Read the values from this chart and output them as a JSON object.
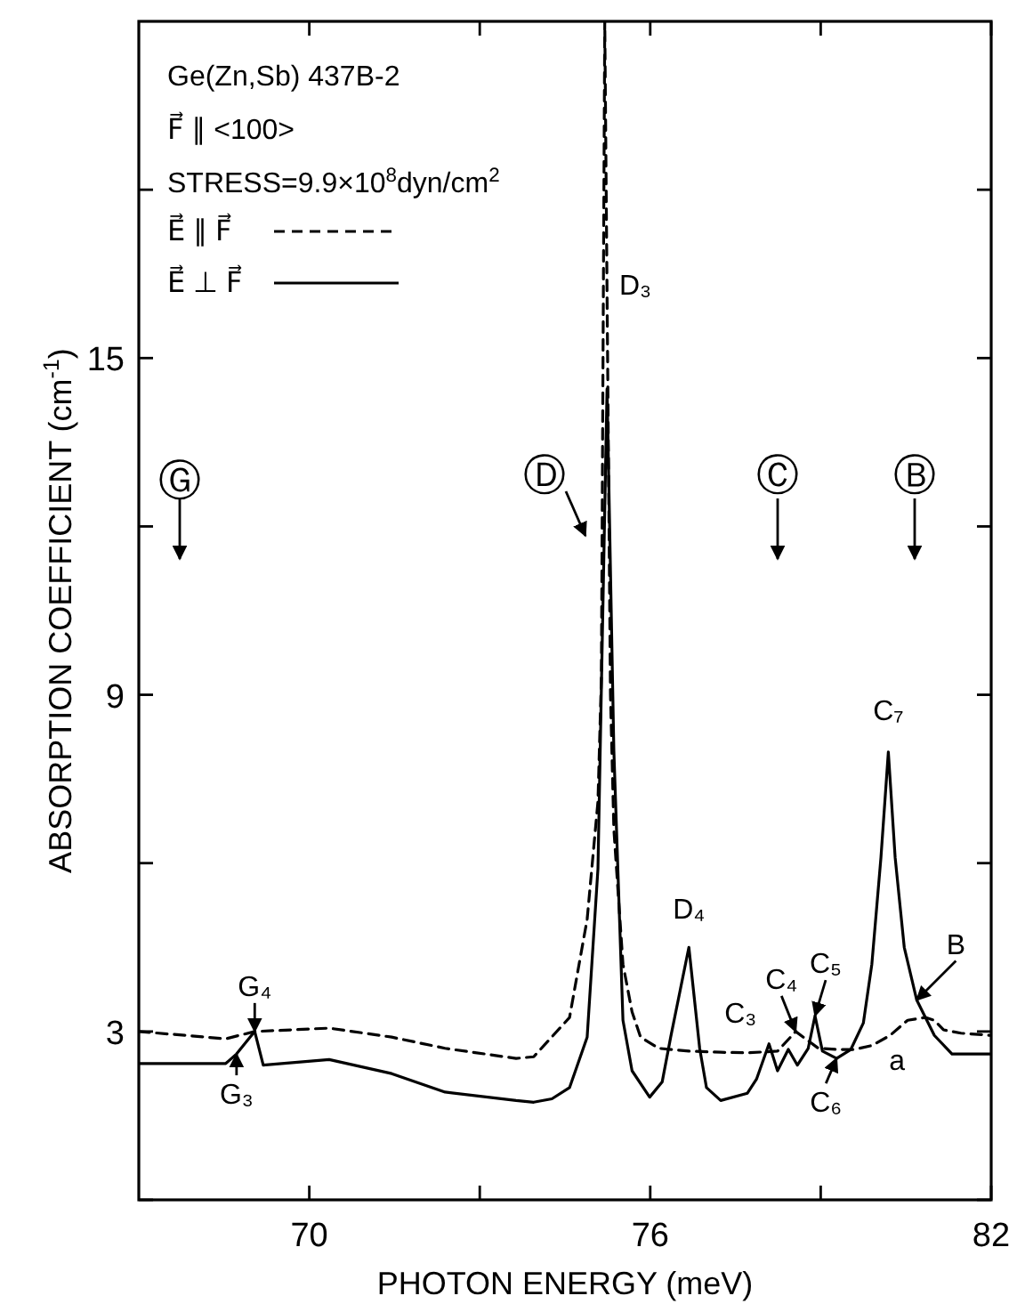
{
  "chart_data": {
    "type": "line",
    "xlabel": "PHOTON ENERGY (meV)",
    "ylabel": "ABSORPTION COEFFICIENT (cm$^{-1}$)",
    "xlim": [
      67,
      82
    ],
    "xticks": [
      70,
      {
        "value": 73,
        "label": null
      },
      76,
      {
        "value": 79,
        "label": null
      },
      82
    ],
    "ylim": [
      0,
      21
    ],
    "yticks": [
      {
        "value": 0,
        "label": null
      },
      3,
      {
        "value": 6,
        "label": null
      },
      9,
      {
        "value": 12,
        "label": null
      },
      15,
      {
        "value": 18,
        "label": null
      }
    ],
    "grid": false,
    "legend": "top left",
    "marker": "none",
    "series": [
      {
        "name": "E⃗ ∥ F⃗",
        "color": "#000000",
        "line_style": "dashed",
        "x": [
          67,
          68.53,
          69.04,
          70.35,
          71.45,
          72.39,
          73.64,
          73.95,
          74.58,
          74.89,
          75.08,
          75.14,
          75.2,
          75.3,
          75.36,
          75.52,
          75.68,
          75.83,
          76.15,
          76.68,
          77.24,
          77.71,
          78.24,
          78.56,
          78.96,
          79.28,
          79.59,
          79.9,
          80.22,
          80.53,
          80.84,
          81.0,
          81.16,
          81.47,
          82
        ],
        "values": [
          3.0,
          2.87,
          3.0,
          3.06,
          2.9,
          2.7,
          2.52,
          2.55,
          3.25,
          5.0,
          7.1,
          9.3,
          21,
          9.0,
          6.6,
          4.2,
          3.35,
          2.9,
          2.7,
          2.65,
          2.63,
          2.62,
          2.65,
          3.0,
          2.7,
          2.68,
          2.68,
          2.75,
          2.93,
          3.2,
          3.25,
          3.2,
          3.03,
          2.97,
          2.93
        ]
      },
      {
        "name": "E⃗ ⊥ F⃗",
        "color": "#000000",
        "line_style": "solid",
        "x": [
          67,
          68.53,
          68.72,
          69.04,
          69.19,
          70.35,
          71.45,
          72.39,
          73.64,
          73.95,
          74.27,
          74.58,
          74.89,
          75.08,
          75.24,
          75.36,
          75.46,
          75.52,
          75.68,
          75.99,
          76.21,
          76.36,
          76.68,
          76.87,
          76.99,
          77.24,
          77.71,
          77.87,
          78.09,
          78.24,
          78.43,
          78.59,
          78.78,
          78.9,
          79.03,
          79.28,
          79.53,
          79.75,
          79.9,
          80.06,
          80.19,
          80.31,
          80.47,
          80.69,
          81.0,
          81.31,
          82
        ],
        "values": [
          2.43,
          2.43,
          2.6,
          3.0,
          2.4,
          2.5,
          2.25,
          1.92,
          1.77,
          1.74,
          1.8,
          2.0,
          2.9,
          5.9,
          14.45,
          8.0,
          5.0,
          3.2,
          2.3,
          1.83,
          2.1,
          2.9,
          4.5,
          2.7,
          2.0,
          1.77,
          1.9,
          2.15,
          2.78,
          2.3,
          2.68,
          2.4,
          2.7,
          3.28,
          2.65,
          2.52,
          2.68,
          3.15,
          4.2,
          6.1,
          7.98,
          6.1,
          4.5,
          3.56,
          2.93,
          2.6,
          2.6
        ]
      }
    ],
    "annotations": [
      "Ge(Zn,Sb) 437B-2",
      "F⃗ ∥ <100>",
      "STRESS=9.9×10$^{8}$dyn/cm$^{2}$",
      "Ⓖ",
      "Ⓓ",
      "Ⓒ",
      "Ⓑ",
      {
        "text": "D₃",
        "x": 75.3,
        "y": 16
      },
      {
        "text": "D₄",
        "x": 76.68,
        "y": 4.5
      },
      {
        "text": "C₇",
        "x": 80.19,
        "y": 7.98
      },
      {
        "text": "C₃",
        "x": 78.09,
        "y": 2.78
      },
      {
        "text": "C₄",
        "x": 78.56,
        "y": 3.0
      },
      {
        "text": "C₅",
        "x": 78.9,
        "y": 3.28
      },
      {
        "text": "C₆",
        "x": 79.28,
        "y": 2.52
      },
      {
        "text": "G₄",
        "x": 69.04,
        "y": 3.0
      },
      {
        "text": "G₃",
        "x": 68.72,
        "y": 2.6
      },
      {
        "text": "B",
        "x": 80.69,
        "y": 3.56
      },
      {
        "text": "a",
        "x": 80.53,
        "y": 3.2
      }
    ]
  }
}
